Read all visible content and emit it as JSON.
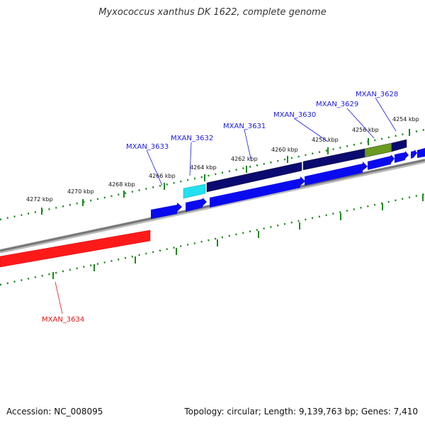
{
  "title": "Myxococcus xanthus DK 1622, complete genome",
  "footer": {
    "accession": "Accession: NC_008095",
    "summary": "Topology: circular; Length: 9,139,763 bp; Genes: 7,410"
  },
  "colors": {
    "backbone": "#888888",
    "tick": "#1a8a1a",
    "forward_gene": "#0a0aee",
    "reverse_gene_dark": "#0a0a70",
    "highlight_cyan": "#22e0f0",
    "highlight_olive": "#6a9a20",
    "reverse_red": "#ff0000",
    "label_blue": "#1a1aee",
    "label_red": "#ee1111"
  },
  "scale_labels": [
    "4254 kbp",
    "4256 kbp",
    "4258 kbp",
    "4260 kbp",
    "4262 kbp",
    "4264 kbp",
    "4266 kbp",
    "4268 kbp",
    "4270 kbp",
    "4272 kbp"
  ],
  "genes": [
    {
      "name": "MXAN_3628",
      "color_key": "label_blue"
    },
    {
      "name": "MXAN_3629",
      "color_key": "label_blue"
    },
    {
      "name": "MXAN_3630",
      "color_key": "label_blue"
    },
    {
      "name": "MXAN_3631",
      "color_key": "label_blue"
    },
    {
      "name": "MXAN_3632",
      "color_key": "label_blue"
    },
    {
      "name": "MXAN_3633",
      "color_key": "label_blue"
    },
    {
      "name": "MXAN_3634",
      "color_key": "label_red"
    }
  ]
}
